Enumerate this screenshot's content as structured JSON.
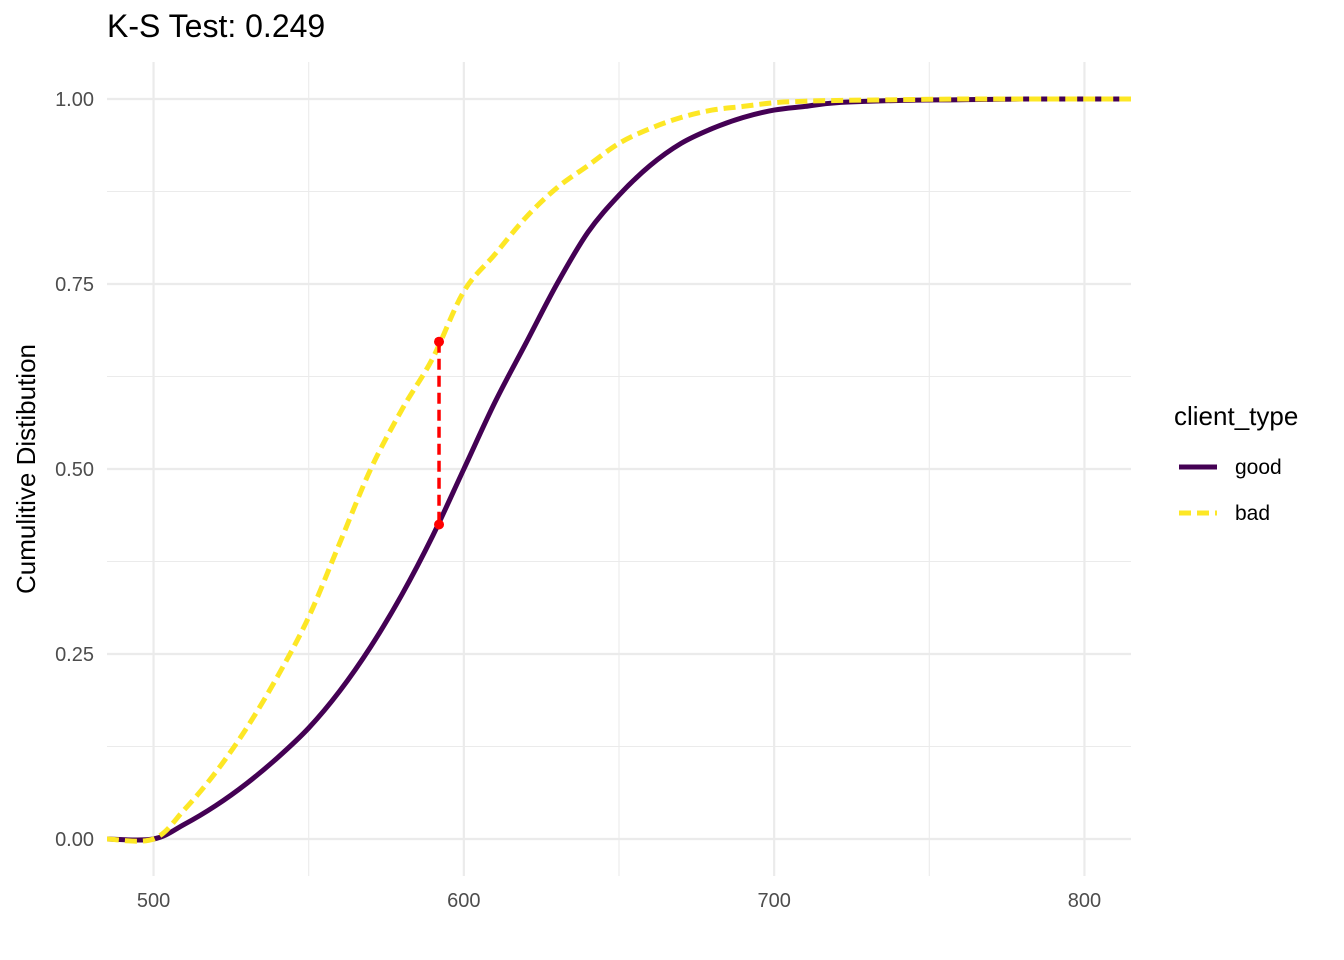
{
  "chart_data": {
    "type": "line",
    "title": "K-S Test: 0.249",
    "xlabel": "",
    "ylabel": "Cumulitive Distibution",
    "xlim": [
      485,
      815
    ],
    "ylim": [
      -0.05,
      1.05
    ],
    "x_ticks": [
      500,
      600,
      700,
      800
    ],
    "x_tick_labels": [
      "500",
      "600",
      "700",
      "800"
    ],
    "y_ticks": [
      0,
      0.25,
      0.5,
      0.75,
      1
    ],
    "y_tick_labels": [
      "0.00",
      "0.25",
      "0.50",
      "0.75",
      "1.00"
    ],
    "grid": true,
    "legend": {
      "title": "client_type",
      "placement": "right",
      "entries": [
        "good",
        "bad"
      ]
    },
    "series": [
      {
        "name": "good",
        "color": "#440154",
        "linestyle": "solid",
        "x": [
          485,
          500,
          510,
          520,
          530,
          540,
          550,
          560,
          570,
          580,
          590,
          600,
          610,
          620,
          630,
          640,
          650,
          660,
          670,
          680,
          690,
          700,
          710,
          720,
          740,
          760,
          780,
          800,
          815
        ],
        "y": [
          0,
          0,
          0.02,
          0.045,
          0.075,
          0.11,
          0.15,
          0.2,
          0.26,
          0.33,
          0.41,
          0.5,
          0.59,
          0.67,
          0.75,
          0.82,
          0.87,
          0.91,
          0.94,
          0.96,
          0.975,
          0.985,
          0.99,
          0.995,
          0.998,
          0.999,
          1,
          1,
          1
        ]
      },
      {
        "name": "bad",
        "color": "#FDE725",
        "linestyle": "dashed",
        "x": [
          485,
          500,
          510,
          520,
          530,
          540,
          550,
          560,
          570,
          580,
          590,
          600,
          610,
          620,
          630,
          640,
          650,
          660,
          670,
          680,
          690,
          700,
          710,
          720,
          740,
          760,
          780,
          800,
          815
        ],
        "y": [
          0,
          0,
          0.04,
          0.09,
          0.15,
          0.22,
          0.3,
          0.4,
          0.5,
          0.58,
          0.65,
          0.74,
          0.79,
          0.84,
          0.88,
          0.91,
          0.94,
          0.96,
          0.975,
          0.985,
          0.99,
          0.995,
          0.997,
          0.998,
          0.999,
          1,
          1,
          1,
          1
        ]
      }
    ],
    "annotation": {
      "type": "ks-gap",
      "color": "#FF0000",
      "x": 592,
      "y_low": 0.425,
      "y_high": 0.672
    }
  }
}
